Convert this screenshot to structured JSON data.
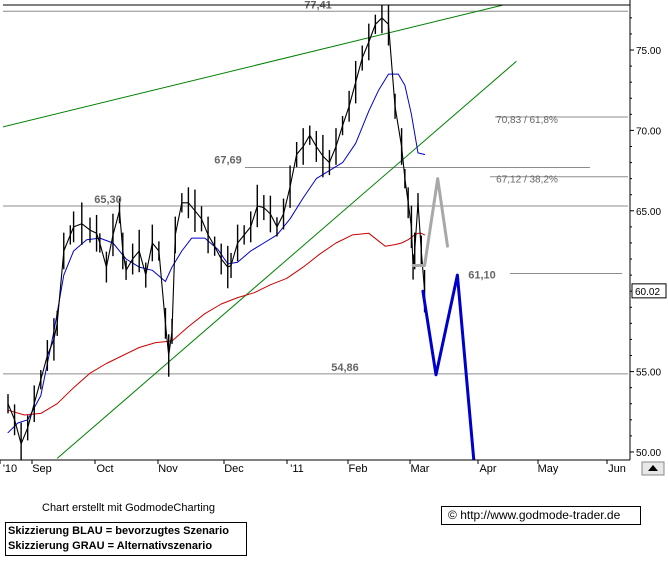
{
  "chart_data": {
    "type": "line",
    "x_tick_labels": [
      "'10",
      "Sep",
      "Oct",
      "Nov",
      "Dec",
      "'11",
      "Feb",
      "Mar",
      "Apr",
      "May",
      "Jun"
    ],
    "y_ticks": [
      50,
      55,
      60,
      65,
      70,
      75
    ],
    "y_tick_labels": [
      "50.00",
      "55.00",
      "60.00",
      "65.00",
      "70.00",
      "75.00"
    ],
    "ylim": [
      49.5,
      77.8
    ],
    "last_price": "60.02",
    "levels": [
      {
        "value": 77.41,
        "label": "77,41"
      },
      {
        "value": 70.83,
        "label": "70,83 / 61,8%"
      },
      {
        "value": 67.69,
        "label": "67,69"
      },
      {
        "value": 67.12,
        "label": "67,12 / 38,2%"
      },
      {
        "value": 65.3,
        "label": "65,30"
      },
      {
        "value": 61.1,
        "label": "61,10"
      },
      {
        "value": 54.86,
        "label": "54,86"
      }
    ],
    "series": [
      {
        "role": "price",
        "color": "#000000",
        "x_days": [
          0,
          4,
          8,
          12,
          16,
          20,
          24,
          28,
          30,
          34,
          38,
          40,
          45,
          50,
          54,
          56,
          60,
          64,
          68,
          70,
          72,
          76,
          80,
          84,
          88,
          92,
          96,
          98,
          100,
          102,
          106,
          110,
          114,
          118,
          122,
          126,
          130,
          134,
          136,
          140,
          144,
          148,
          152,
          156,
          160,
          164,
          168,
          172,
          176,
          180,
          184,
          188,
          192,
          196,
          200,
          204,
          208,
          212,
          216,
          220,
          224,
          228,
          232,
          236,
          240,
          242,
          244,
          246,
          247,
          248,
          250,
          252,
          254
        ],
        "y": [
          53.0,
          52.0,
          50.5,
          51.5,
          53.0,
          54.5,
          56.0,
          57.0,
          58.0,
          62.5,
          63.5,
          64.0,
          64.2,
          63.8,
          63.6,
          63.0,
          61.5,
          63.5,
          65.0,
          62.5,
          61.3,
          62.0,
          62.5,
          61.0,
          63.0,
          62.5,
          58.0,
          56.0,
          57.5,
          63.5,
          65.5,
          65.5,
          65.0,
          64.5,
          63.5,
          62.8,
          62.0,
          61.5,
          61.6,
          63.0,
          63.5,
          64.0,
          65.3,
          65.2,
          64.8,
          64.0,
          64.8,
          66.5,
          68.5,
          69.0,
          69.7,
          69.0,
          68.4,
          68.0,
          69.0,
          70.3,
          71.5,
          73.0,
          74.5,
          75.5,
          76.6,
          77.0,
          76.6,
          71.5,
          69.0,
          67.0,
          65.5,
          64.0,
          61.5,
          62.5,
          65.5,
          62.5,
          60.0
        ]
      },
      {
        "role": "short moving average",
        "color": "#0000cc",
        "x_days": [
          0,
          6,
          12,
          20,
          28,
          34,
          40,
          48,
          56,
          64,
          72,
          80,
          88,
          96,
          100,
          106,
          112,
          120,
          128,
          134,
          140,
          148,
          156,
          164,
          172,
          180,
          188,
          196,
          204,
          212,
          220,
          226,
          232,
          238,
          242,
          246,
          250,
          254
        ],
        "y": [
          51.2,
          51.8,
          52.0,
          53.5,
          57.5,
          61.0,
          62.5,
          63.2,
          63.3,
          63.0,
          62.0,
          61.5,
          61.3,
          60.6,
          61.5,
          62.5,
          63.3,
          63.3,
          62.6,
          61.7,
          61.8,
          62.5,
          63.0,
          63.5,
          64.5,
          65.8,
          67.0,
          67.5,
          68.0,
          69.2,
          71.2,
          72.5,
          73.5,
          73.5,
          72.8,
          71.0,
          68.6,
          68.5
        ]
      },
      {
        "role": "long moving average",
        "color": "#cc0000",
        "x_days": [
          0,
          10,
          20,
          30,
          40,
          50,
          60,
          70,
          80,
          90,
          100,
          110,
          120,
          130,
          140,
          150,
          160,
          170,
          180,
          190,
          200,
          210,
          220,
          230,
          236,
          240,
          244,
          248,
          250,
          252,
          254
        ],
        "y": [
          52.6,
          52.3,
          52.4,
          53.0,
          54.0,
          54.9,
          55.5,
          56.0,
          56.5,
          56.8,
          56.9,
          57.8,
          58.6,
          59.2,
          59.6,
          59.9,
          60.4,
          60.8,
          61.5,
          62.3,
          63.0,
          63.5,
          63.6,
          62.8,
          62.9,
          63.0,
          63.2,
          63.5,
          63.6,
          63.6,
          63.5
        ]
      },
      {
        "role": "preferred scenario (blue sketch)",
        "color": "#0000cc",
        "x_days": [
          253,
          261,
          274,
          284
        ],
        "y": [
          60.0,
          54.8,
          61.0,
          49.5
        ]
      },
      {
        "role": "alternative scenario (grey sketch)",
        "color": "#a8a8a8",
        "x_days": [
          247,
          254,
          262,
          268
        ],
        "y": [
          61.6,
          61.6,
          67.0,
          62.8
        ]
      }
    ],
    "trendlines": [
      {
        "color": "#008000",
        "x_days": [
          -20,
          314
        ],
        "y": [
          69.8,
          78.1
        ]
      },
      {
        "color": "#008000",
        "x_days": [
          30,
          310
        ],
        "y": [
          49.6,
          74.3
        ]
      }
    ],
    "annotations": [
      "77,41",
      "70,83 / 61,8%",
      "67,69",
      "67,12 / 38,2%",
      "65,30",
      "61,10",
      "54,86"
    ]
  },
  "footer": {
    "credit": "Chart erstellt mit GodmodeCharting",
    "legend_blue": "Skizzierung BLAU = bevorzugtes Szenario",
    "legend_grey": "Skizzierung GRAU = Alternativszenario",
    "copyright_symbol": "©",
    "url": "http://www.godmode-trader.de"
  }
}
